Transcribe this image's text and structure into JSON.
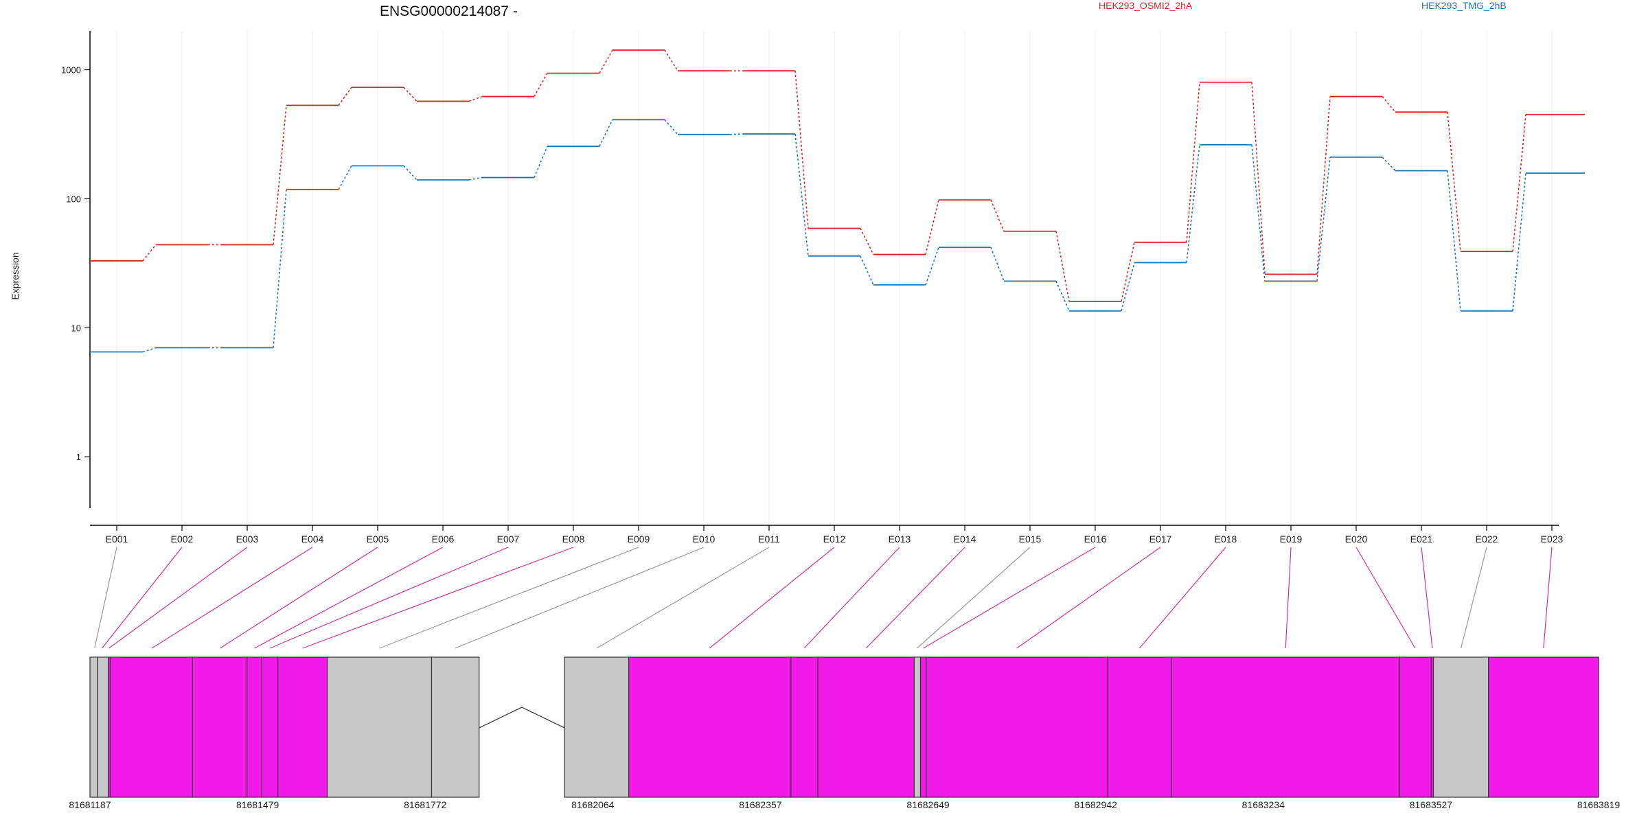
{
  "chart_data": {
    "type": "line",
    "title": "ENSG00000214087 -",
    "xlabel": "",
    "ylabel": "Expression",
    "y_scale": "log",
    "ylim": [
      0.4,
      2000
    ],
    "yticks": [
      "1",
      "10",
      "100",
      "1000"
    ],
    "grid": "vertical lines at each exon",
    "legend": "top-right",
    "categories": [
      "E001",
      "E002",
      "E003",
      "E004",
      "E005",
      "E006",
      "E007",
      "E008",
      "E009",
      "E010",
      "E011",
      "E012",
      "E013",
      "E014",
      "E015",
      "E016",
      "E017",
      "E018",
      "E019",
      "E020",
      "E021",
      "E022",
      "E023"
    ],
    "series": [
      {
        "name": "HEK293_OSMI2_2hA",
        "color": "#d62728",
        "values": [
          33,
          44,
          44,
          530,
          730,
          570,
          620,
          940,
          1420,
          980,
          980,
          59,
          37,
          98,
          56,
          16,
          46,
          800,
          26,
          620,
          470,
          39,
          450
        ]
      },
      {
        "name": "HEK293_TMG_2hB",
        "color": "#1f77b4",
        "values": [
          6.5,
          7,
          7,
          118,
          180,
          140,
          146,
          255,
          410,
          315,
          318,
          36,
          21.5,
          42,
          23,
          13.5,
          32,
          262,
          23,
          210,
          165,
          13.5,
          158
        ]
      }
    ],
    "gene_model": {
      "coordinate_labels": [
        "81681187",
        "81681479",
        "81681772",
        "81682064",
        "81682357",
        "81682649",
        "81682942",
        "81683234",
        "81683527",
        "81683819"
      ],
      "region_start": 81681187,
      "region_end": 81683819,
      "exon_color": "#f21ae8",
      "nontested_color": "#c8c8c8",
      "segments": [
        {
          "start": 81681187,
          "end": 81681200,
          "kind": "gray"
        },
        {
          "start": 81681200,
          "end": 81681219,
          "kind": "gray"
        },
        {
          "start": 81681219,
          "end": 81681223,
          "kind": "exon"
        },
        {
          "start": 81681223,
          "end": 81681366,
          "kind": "exon"
        },
        {
          "start": 81681366,
          "end": 81681461,
          "kind": "exon"
        },
        {
          "start": 81681461,
          "end": 81681487,
          "kind": "exon"
        },
        {
          "start": 81681487,
          "end": 81681515,
          "kind": "exon"
        },
        {
          "start": 81681515,
          "end": 81681601,
          "kind": "exon"
        },
        {
          "start": 81681601,
          "end": 81681783,
          "kind": "gray"
        },
        {
          "start": 81681783,
          "end": 81681866,
          "kind": "gray"
        },
        {
          "start": 81682015,
          "end": 81682127,
          "kind": "gray"
        },
        {
          "start": 81682127,
          "end": 81682410,
          "kind": "exon"
        },
        {
          "start": 81682410,
          "end": 81682457,
          "kind": "exon"
        },
        {
          "start": 81682457,
          "end": 81682625,
          "kind": "exon"
        },
        {
          "start": 81682625,
          "end": 81682636,
          "kind": "gray"
        },
        {
          "start": 81682636,
          "end": 81682646,
          "kind": "exon"
        },
        {
          "start": 81682646,
          "end": 81682962,
          "kind": "exon"
        },
        {
          "start": 81682962,
          "end": 81683074,
          "kind": "exon"
        },
        {
          "start": 81683074,
          "end": 81683472,
          "kind": "exon"
        },
        {
          "start": 81683472,
          "end": 81683527,
          "kind": "exon"
        },
        {
          "start": 81683527,
          "end": 81683531,
          "kind": "exon"
        },
        {
          "start": 81683531,
          "end": 81683627,
          "kind": "gray"
        },
        {
          "start": 81683627,
          "end": 81683819,
          "kind": "exon"
        }
      ],
      "intron": {
        "start": 81681866,
        "end": 81682015
      },
      "connectors": [
        {
          "exon": "E001",
          "pos": 81681195,
          "color": "#999999"
        },
        {
          "exon": "E002",
          "pos": 81681208,
          "color": "#cc3399"
        },
        {
          "exon": "E003",
          "pos": 81681220,
          "color": "#cc3399"
        },
        {
          "exon": "E004",
          "pos": 81681295,
          "color": "#cc3399"
        },
        {
          "exon": "E005",
          "pos": 81681414,
          "color": "#cc3399"
        },
        {
          "exon": "E006",
          "pos": 81681474,
          "color": "#cc3399"
        },
        {
          "exon": "E007",
          "pos": 81681501,
          "color": "#cc3399"
        },
        {
          "exon": "E008",
          "pos": 81681558,
          "color": "#cc3399"
        },
        {
          "exon": "E009",
          "pos": 81681692,
          "color": "#999999"
        },
        {
          "exon": "E010",
          "pos": 81681824,
          "color": "#999999"
        },
        {
          "exon": "E011",
          "pos": 81682071,
          "color": "#999999"
        },
        {
          "exon": "E012",
          "pos": 81682268,
          "color": "#cc3399"
        },
        {
          "exon": "E013",
          "pos": 81682433,
          "color": "#cc3399"
        },
        {
          "exon": "E014",
          "pos": 81682541,
          "color": "#cc3399"
        },
        {
          "exon": "E015",
          "pos": 81682630,
          "color": "#999999"
        },
        {
          "exon": "E016",
          "pos": 81682641,
          "color": "#cc3399"
        },
        {
          "exon": "E017",
          "pos": 81682804,
          "color": "#cc3399"
        },
        {
          "exon": "E018",
          "pos": 81683018,
          "color": "#cc3399"
        },
        {
          "exon": "E019",
          "pos": 81683273,
          "color": "#cc3399"
        },
        {
          "exon": "E020",
          "pos": 81683499,
          "color": "#cc3399"
        },
        {
          "exon": "E021",
          "pos": 81683529,
          "color": "#cc3399"
        },
        {
          "exon": "E022",
          "pos": 81683579,
          "color": "#999999"
        },
        {
          "exon": "E023",
          "pos": 81683723,
          "color": "#cc3399"
        }
      ]
    }
  }
}
